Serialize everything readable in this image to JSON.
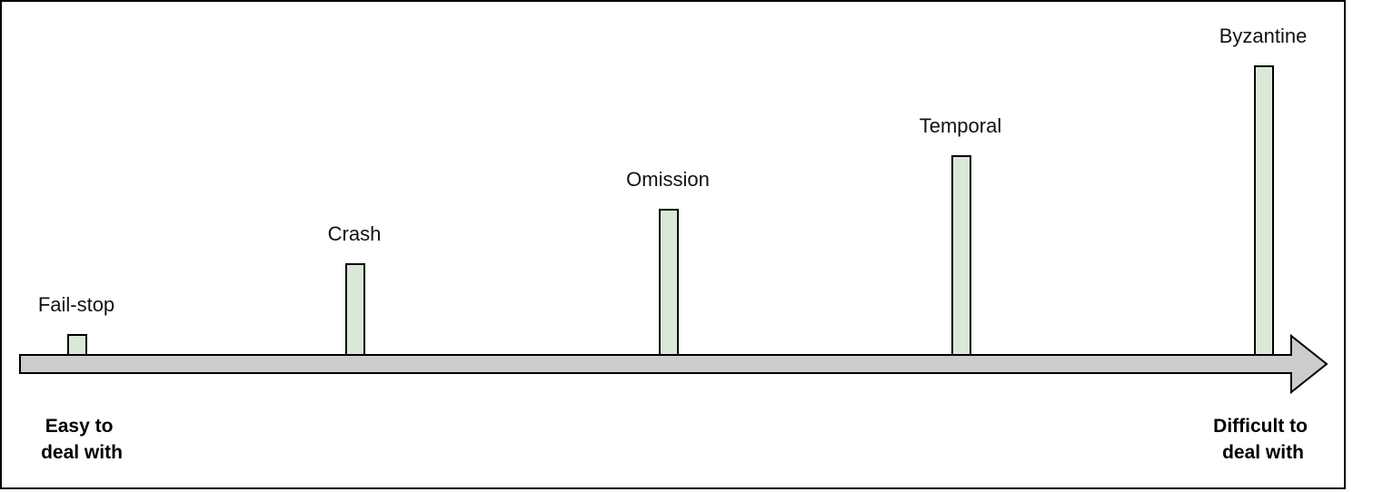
{
  "diagram": {
    "bar_fill": "#dae8d6",
    "arrow_fill": "#cccccc",
    "stroke_color": "#000000",
    "failures": [
      {
        "id": "fail-stop",
        "label": "Fail-stop",
        "level": 1
      },
      {
        "id": "crash",
        "label": "Crash",
        "level": 2
      },
      {
        "id": "omission",
        "label": "Omission",
        "level": 3
      },
      {
        "id": "temporal",
        "label": "Temporal",
        "level": 4
      },
      {
        "id": "byzantine",
        "label": "Byzantine",
        "level": 5
      }
    ],
    "start_label": [
      "Easy to",
      "deal with"
    ],
    "end_label": [
      "Difficult to",
      "deal with"
    ]
  }
}
